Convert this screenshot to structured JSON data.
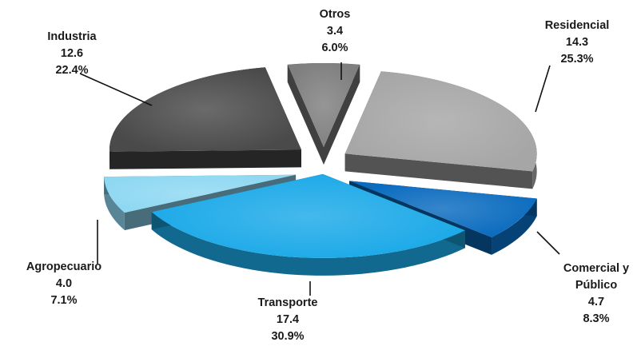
{
  "chart_data": {
    "type": "pie",
    "style": "3d-exploded",
    "slices": [
      {
        "label": "Otros",
        "value": 3.4,
        "percent": "6.0%",
        "color": "#7f7f7f"
      },
      {
        "label": "Residencial",
        "value": 14.3,
        "percent": "25.3%",
        "color": "#a6a6a6"
      },
      {
        "label": "Comercial y Público",
        "label_lines": [
          "Comercial y",
          "Público"
        ],
        "value": 4.7,
        "percent": "8.3%",
        "color": "#0a6bbf"
      },
      {
        "label": "Transporte",
        "value": 17.4,
        "percent": "30.9%",
        "color": "#1ba9e8"
      },
      {
        "label": "Agropecuario",
        "value": 4.0,
        "percent": "7.1%",
        "color": "#8fd8f2"
      },
      {
        "label": "Industria",
        "value": 12.6,
        "percent": "22.4%",
        "color": "#4a4a4a"
      }
    ],
    "legend": "none",
    "data_labels": "outside-with-leader-lines"
  }
}
